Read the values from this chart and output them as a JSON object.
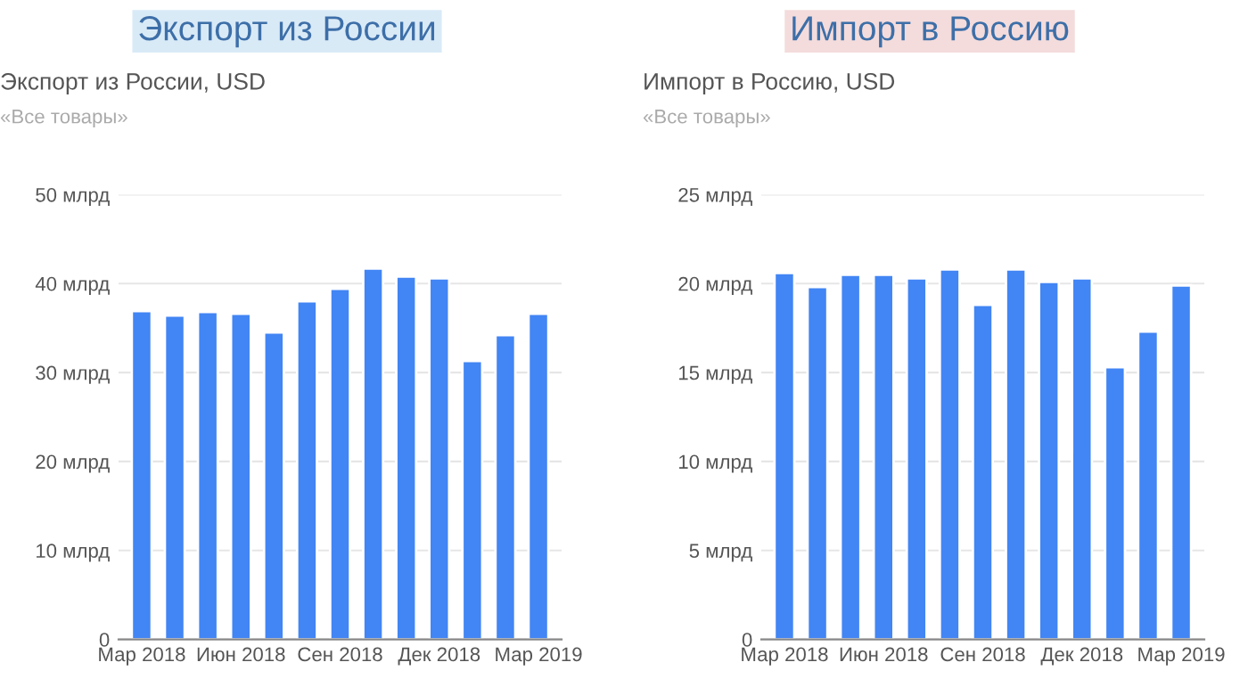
{
  "chart_data": [
    {
      "type": "bar",
      "title": "Экспорт из России",
      "subtitle": "Экспорт из России, USD",
      "annotations": [
        "«Все товары»"
      ],
      "categories": [
        "Мар 2018",
        null,
        null,
        "Июн 2018",
        null,
        null,
        "Сен 2018",
        null,
        null,
        "Дек 2018",
        null,
        null,
        "Мар 2019"
      ],
      "series": [
        {
          "color": "#4285f4",
          "values": [
            36.9,
            36.4,
            36.8,
            36.6,
            34.5,
            38.0,
            39.4,
            41.7,
            40.8,
            40.6,
            31.3,
            34.2,
            36.6
          ]
        }
      ],
      "ylim": [
        0,
        50
      ],
      "yticks": [
        0,
        {
          "value": 10,
          "label": "10 млрд"
        },
        {
          "value": 20,
          "label": "20 млрд"
        },
        {
          "value": 30,
          "label": "30 млрд"
        },
        {
          "value": 40,
          "label": "40 млрд"
        },
        {
          "value": 50,
          "label": "50 млрд"
        }
      ],
      "grid": "y"
    },
    {
      "type": "bar",
      "title": "Импорт в Россию",
      "subtitle": "Импорт в Россию, USD",
      "annotations": [
        "«Все товары»"
      ],
      "categories": [
        "Мар 2018",
        null,
        null,
        "Июн 2018",
        null,
        null,
        "Сен 2018",
        null,
        null,
        "Дек 2018",
        null,
        null,
        "Мар 2019"
      ],
      "series": [
        {
          "color": "#4285f4",
          "values": [
            20.6,
            19.8,
            20.5,
            20.5,
            20.3,
            20.8,
            18.8,
            20.8,
            20.1,
            20.3,
            15.3,
            17.3,
            19.9
          ]
        }
      ],
      "ylim": [
        0,
        25
      ],
      "yticks": [
        0,
        {
          "value": 5,
          "label": "5 млрд"
        },
        {
          "value": 10,
          "label": "10 млрд"
        },
        {
          "value": 15,
          "label": "15 млрд"
        },
        {
          "value": 20,
          "label": "20 млрд"
        },
        {
          "value": 25,
          "label": "25 млрд"
        }
      ],
      "grid": "y"
    }
  ]
}
